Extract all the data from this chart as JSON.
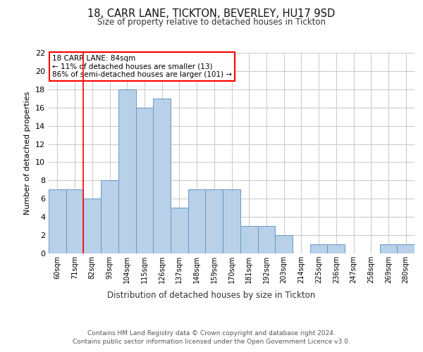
{
  "title": "18, CARR LANE, TICKTON, BEVERLEY, HU17 9SD",
  "subtitle": "Size of property relative to detached houses in Tickton",
  "xlabel": "Distribution of detached houses by size in Tickton",
  "ylabel": "Number of detached properties",
  "categories": [
    "60sqm",
    "71sqm",
    "82sqm",
    "93sqm",
    "104sqm",
    "115sqm",
    "126sqm",
    "137sqm",
    "148sqm",
    "159sqm",
    "170sqm",
    "181sqm",
    "192sqm",
    "203sqm",
    "214sqm",
    "225sqm",
    "236sqm",
    "247sqm",
    "258sqm",
    "269sqm",
    "280sqm"
  ],
  "values": [
    7,
    7,
    6,
    8,
    18,
    16,
    17,
    5,
    7,
    7,
    7,
    3,
    3,
    2,
    0,
    1,
    1,
    0,
    0,
    1,
    1
  ],
  "bar_color": "#b8d0e8",
  "bar_edge_color": "#6699cc",
  "ylim": [
    0,
    22
  ],
  "yticks": [
    0,
    2,
    4,
    6,
    8,
    10,
    12,
    14,
    16,
    18,
    20,
    22
  ],
  "annotation_text": "18 CARR LANE: 84sqm\n← 11% of detached houses are smaller (13)\n86% of semi-detached houses are larger (101) →",
  "red_line_bar_index": 2,
  "footer": "Contains HM Land Registry data © Crown copyright and database right 2024.\nContains public sector information licensed under the Open Government Licence v3.0.",
  "background_color": "#ffffff",
  "grid_color": "#cccccc"
}
